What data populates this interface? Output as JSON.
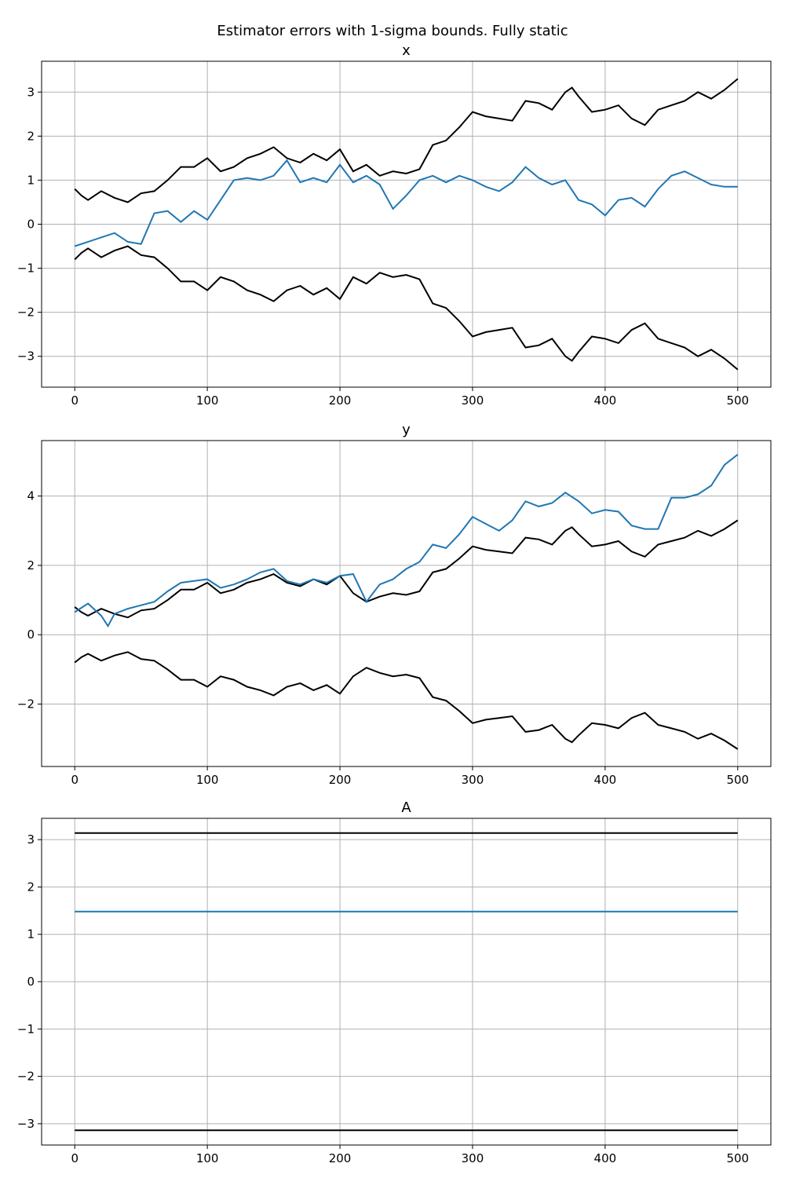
{
  "figure": {
    "suptitle": "Estimator errors with 1-sigma bounds. Fully static"
  },
  "colors": {
    "estimate": "#1f77b4",
    "bounds": "#000000",
    "grid": "#b0b0b0"
  },
  "chart_data": [
    {
      "type": "line",
      "title": "x",
      "xlabel": "",
      "ylabel": "",
      "xlim": [
        -25,
        525
      ],
      "ylim": [
        -3.7,
        3.7
      ],
      "xticks": [
        0,
        100,
        200,
        300,
        400,
        500
      ],
      "yticks": [
        -3,
        -2,
        -1,
        0,
        1,
        2,
        3
      ],
      "grid": true,
      "series": [
        {
          "role": "upper-bound",
          "color": "#000000",
          "x": [
            0,
            5,
            10,
            20,
            30,
            40,
            50,
            60,
            70,
            80,
            90,
            100,
            110,
            120,
            130,
            140,
            150,
            160,
            170,
            180,
            190,
            200,
            210,
            220,
            230,
            240,
            250,
            260,
            270,
            280,
            290,
            300,
            310,
            320,
            330,
            340,
            350,
            360,
            370,
            375,
            380,
            390,
            400,
            410,
            420,
            430,
            440,
            450,
            460,
            470,
            480,
            490,
            500
          ],
          "y": [
            0.8,
            0.65,
            0.55,
            0.75,
            0.6,
            0.5,
            0.7,
            0.75,
            1.0,
            1.3,
            1.3,
            1.5,
            1.2,
            1.3,
            1.5,
            1.6,
            1.75,
            1.5,
            1.4,
            1.6,
            1.45,
            1.7,
            1.2,
            1.35,
            1.1,
            1.2,
            1.15,
            1.25,
            1.8,
            1.9,
            2.2,
            2.55,
            2.45,
            2.4,
            2.35,
            2.8,
            2.75,
            2.6,
            3.0,
            3.1,
            2.9,
            2.55,
            2.6,
            2.7,
            2.4,
            2.25,
            2.6,
            2.7,
            2.8,
            3.0,
            2.85,
            3.05,
            3.3
          ]
        },
        {
          "role": "estimate",
          "color": "#1f77b4",
          "x": [
            0,
            10,
            20,
            30,
            40,
            50,
            60,
            70,
            80,
            90,
            100,
            110,
            120,
            130,
            140,
            150,
            160,
            170,
            180,
            190,
            200,
            210,
            220,
            230,
            240,
            250,
            260,
            270,
            280,
            290,
            300,
            310,
            320,
            330,
            340,
            350,
            360,
            370,
            380,
            390,
            400,
            410,
            420,
            430,
            440,
            450,
            460,
            470,
            480,
            490,
            500
          ],
          "y": [
            -0.5,
            -0.4,
            -0.3,
            -0.2,
            -0.4,
            -0.45,
            0.25,
            0.3,
            0.05,
            0.3,
            0.1,
            0.55,
            1.0,
            1.05,
            1.0,
            1.1,
            1.45,
            0.95,
            1.05,
            0.95,
            1.35,
            0.95,
            1.1,
            0.9,
            0.35,
            0.65,
            1.0,
            1.1,
            0.95,
            1.1,
            1.0,
            0.85,
            0.75,
            0.95,
            1.3,
            1.05,
            0.9,
            1.0,
            0.55,
            0.45,
            0.2,
            0.55,
            0.6,
            0.4,
            0.8,
            1.1,
            1.2,
            1.05,
            0.9,
            0.85,
            0.85
          ]
        },
        {
          "role": "lower-bound",
          "color": "#000000",
          "x": [
            0,
            5,
            10,
            20,
            30,
            40,
            50,
            60,
            70,
            80,
            90,
            100,
            110,
            120,
            130,
            140,
            150,
            160,
            170,
            180,
            190,
            200,
            210,
            220,
            230,
            240,
            250,
            260,
            270,
            280,
            290,
            300,
            310,
            320,
            330,
            340,
            350,
            360,
            370,
            375,
            380,
            390,
            400,
            410,
            420,
            430,
            440,
            450,
            460,
            470,
            480,
            490,
            500
          ],
          "y": [
            -0.8,
            -0.65,
            -0.55,
            -0.75,
            -0.6,
            -0.5,
            -0.7,
            -0.75,
            -1.0,
            -1.3,
            -1.3,
            -1.5,
            -1.2,
            -1.3,
            -1.5,
            -1.6,
            -1.75,
            -1.5,
            -1.4,
            -1.6,
            -1.45,
            -1.7,
            -1.2,
            -1.35,
            -1.1,
            -1.2,
            -1.15,
            -1.25,
            -1.8,
            -1.9,
            -2.2,
            -2.55,
            -2.45,
            -2.4,
            -2.35,
            -2.8,
            -2.75,
            -2.6,
            -3.0,
            -3.1,
            -2.9,
            -2.55,
            -2.6,
            -2.7,
            -2.4,
            -2.25,
            -2.6,
            -2.7,
            -2.8,
            -3.0,
            -2.85,
            -3.05,
            -3.3
          ]
        }
      ]
    },
    {
      "type": "line",
      "title": "y",
      "xlabel": "",
      "ylabel": "",
      "xlim": [
        -25,
        525
      ],
      "ylim": [
        -3.8,
        5.6
      ],
      "xticks": [
        0,
        100,
        200,
        300,
        400,
        500
      ],
      "yticks": [
        -2,
        0,
        2,
        4
      ],
      "grid": true,
      "series": [
        {
          "role": "upper-bound",
          "color": "#000000",
          "x": [
            0,
            5,
            10,
            20,
            30,
            40,
            50,
            60,
            70,
            80,
            90,
            100,
            110,
            120,
            130,
            140,
            150,
            160,
            170,
            180,
            190,
            200,
            210,
            220,
            230,
            240,
            250,
            260,
            270,
            280,
            290,
            300,
            310,
            320,
            330,
            340,
            350,
            360,
            370,
            375,
            380,
            390,
            400,
            410,
            420,
            430,
            440,
            450,
            460,
            470,
            480,
            490,
            500
          ],
          "y": [
            0.8,
            0.65,
            0.55,
            0.75,
            0.6,
            0.5,
            0.7,
            0.75,
            1.0,
            1.3,
            1.3,
            1.5,
            1.2,
            1.3,
            1.5,
            1.6,
            1.75,
            1.5,
            1.4,
            1.6,
            1.45,
            1.7,
            1.2,
            0.95,
            1.1,
            1.2,
            1.15,
            1.25,
            1.8,
            1.9,
            2.2,
            2.55,
            2.45,
            2.4,
            2.35,
            2.8,
            2.75,
            2.6,
            3.0,
            3.1,
            2.9,
            2.55,
            2.6,
            2.7,
            2.4,
            2.25,
            2.6,
            2.7,
            2.8,
            3.0,
            2.85,
            3.05,
            3.3
          ]
        },
        {
          "role": "estimate",
          "color": "#1f77b4",
          "x": [
            0,
            10,
            20,
            25,
            30,
            40,
            50,
            60,
            70,
            80,
            90,
            100,
            110,
            120,
            130,
            140,
            150,
            160,
            170,
            180,
            190,
            200,
            210,
            220,
            230,
            240,
            250,
            260,
            270,
            280,
            290,
            300,
            310,
            320,
            330,
            340,
            350,
            360,
            370,
            380,
            390,
            400,
            410,
            420,
            430,
            440,
            450,
            460,
            470,
            480,
            490,
            500
          ],
          "y": [
            0.65,
            0.9,
            0.55,
            0.25,
            0.6,
            0.75,
            0.85,
            0.95,
            1.25,
            1.5,
            1.55,
            1.6,
            1.35,
            1.45,
            1.6,
            1.8,
            1.9,
            1.55,
            1.45,
            1.6,
            1.5,
            1.7,
            1.75,
            0.95,
            1.45,
            1.6,
            1.9,
            2.1,
            2.6,
            2.5,
            2.9,
            3.4,
            3.2,
            3.0,
            3.3,
            3.85,
            3.7,
            3.8,
            4.1,
            3.85,
            3.5,
            3.6,
            3.55,
            3.15,
            3.05,
            3.05,
            3.95,
            3.95,
            4.05,
            4.3,
            4.9,
            5.2
          ]
        },
        {
          "role": "lower-bound",
          "color": "#000000",
          "x": [
            0,
            5,
            10,
            20,
            30,
            40,
            50,
            60,
            70,
            80,
            90,
            100,
            110,
            120,
            130,
            140,
            150,
            160,
            170,
            180,
            190,
            200,
            210,
            220,
            230,
            240,
            250,
            260,
            270,
            280,
            290,
            300,
            310,
            320,
            330,
            340,
            350,
            360,
            370,
            375,
            380,
            390,
            400,
            410,
            420,
            430,
            440,
            450,
            460,
            470,
            480,
            490,
            500
          ],
          "y": [
            -0.8,
            -0.65,
            -0.55,
            -0.75,
            -0.6,
            -0.5,
            -0.7,
            -0.75,
            -1.0,
            -1.3,
            -1.3,
            -1.5,
            -1.2,
            -1.3,
            -1.5,
            -1.6,
            -1.75,
            -1.5,
            -1.4,
            -1.6,
            -1.45,
            -1.7,
            -1.2,
            -0.95,
            -1.1,
            -1.2,
            -1.15,
            -1.25,
            -1.8,
            -1.9,
            -2.2,
            -2.55,
            -2.45,
            -2.4,
            -2.35,
            -2.8,
            -2.75,
            -2.6,
            -3.0,
            -3.1,
            -2.9,
            -2.55,
            -2.6,
            -2.7,
            -2.4,
            -2.25,
            -2.6,
            -2.7,
            -2.8,
            -3.0,
            -2.85,
            -3.05,
            -3.3
          ]
        }
      ]
    },
    {
      "type": "line",
      "title": "A",
      "xlabel": "",
      "ylabel": "",
      "xlim": [
        -25,
        525
      ],
      "ylim": [
        -3.45,
        3.45
      ],
      "xticks": [
        0,
        100,
        200,
        300,
        400,
        500
      ],
      "yticks": [
        -3,
        -2,
        -1,
        0,
        1,
        2,
        3
      ],
      "grid": true,
      "series": [
        {
          "role": "upper-bound",
          "color": "#000000",
          "x": [
            0,
            500
          ],
          "y": [
            3.14,
            3.14
          ]
        },
        {
          "role": "estimate",
          "color": "#1f77b4",
          "x": [
            0,
            500
          ],
          "y": [
            1.48,
            1.48
          ]
        },
        {
          "role": "lower-bound",
          "color": "#000000",
          "x": [
            0,
            500
          ],
          "y": [
            -3.14,
            -3.14
          ]
        }
      ]
    }
  ]
}
